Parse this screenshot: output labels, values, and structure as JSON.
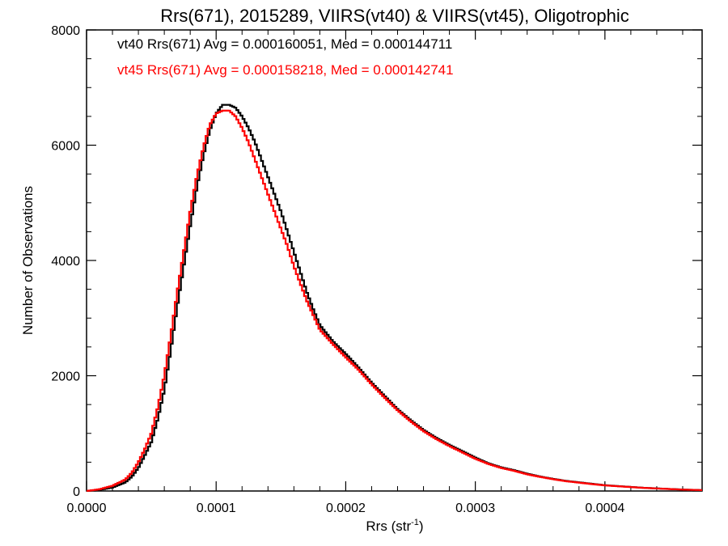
{
  "chart_data": {
    "type": "line",
    "title": "Rrs(671), 2015289, VIIRS(vt40) & VIIRS(vt45), Oligotrophic",
    "xlabel_main": "Rrs (str",
    "xlabel_exp": "-1",
    "xlabel_close": ")",
    "ylabel": "Number of Observations",
    "xlim": [
      0,
      0.000475
    ],
    "ylim": [
      0,
      8000
    ],
    "x_ticks": [
      0,
      0.0001,
      0.0002,
      0.0003,
      0.0004
    ],
    "x_tick_labels": [
      "0.0000",
      "0.0001",
      "0.0002",
      "0.0003",
      "0.0004"
    ],
    "y_ticks": [
      0,
      2000,
      4000,
      6000,
      8000
    ],
    "y_tick_labels": [
      "0",
      "2000",
      "4000",
      "6000",
      "8000"
    ],
    "annotations": [
      "vt40 Rrs(671) Avg = 0.000160051, Med = 0.000144711",
      "vt45 Rrs(671) Avg = 0.000158218, Med = 0.000142741"
    ],
    "series": [
      {
        "color": "#000000",
        "x": [
          0,
          1e-05,
          2e-05,
          3e-05,
          3.5e-05,
          4e-05,
          4.5e-05,
          5e-05,
          5.5e-05,
          6e-05,
          6.5e-05,
          7e-05,
          7.5e-05,
          8e-05,
          8.5e-05,
          9e-05,
          9.5e-05,
          0.0001,
          0.000105,
          0.00011,
          0.000115,
          0.00012,
          0.000125,
          0.00013,
          0.000135,
          0.00014,
          0.000145,
          0.00015,
          0.000155,
          0.00016,
          0.000165,
          0.00017,
          0.000175,
          0.00018,
          0.00019,
          0.0002,
          0.00021,
          0.00022,
          0.00023,
          0.00024,
          0.00025,
          0.00026,
          0.00027,
          0.00028,
          0.00029,
          0.0003,
          0.00031,
          0.00032,
          0.00033,
          0.00034,
          0.00035,
          0.00036,
          0.00037,
          0.00038,
          0.00039,
          0.0004,
          0.00041,
          0.00042,
          0.00043,
          0.00044,
          0.00045,
          0.00046,
          0.000475
        ],
        "y": [
          0,
          20,
          60,
          150,
          250,
          400,
          620,
          850,
          1250,
          1750,
          2450,
          3200,
          3900,
          4600,
          5250,
          5800,
          6250,
          6550,
          6700,
          6700,
          6650,
          6500,
          6300,
          6050,
          5750,
          5450,
          5150,
          4850,
          4500,
          4150,
          3800,
          3450,
          3150,
          2880,
          2600,
          2380,
          2140,
          1880,
          1650,
          1420,
          1230,
          1060,
          920,
          800,
          690,
          580,
          480,
          410,
          360,
          300,
          250,
          210,
          175,
          150,
          125,
          100,
          85,
          70,
          55,
          45,
          35,
          25,
          15
        ]
      },
      {
        "color": "#ff0000",
        "x": [
          0,
          1e-05,
          2e-05,
          3e-05,
          3.5e-05,
          4e-05,
          4.5e-05,
          5e-05,
          5.5e-05,
          6e-05,
          6.5e-05,
          7e-05,
          7.5e-05,
          8e-05,
          8.5e-05,
          9e-05,
          9.5e-05,
          0.0001,
          0.000105,
          0.00011,
          0.000115,
          0.00012,
          0.000125,
          0.00013,
          0.000135,
          0.00014,
          0.000145,
          0.00015,
          0.000155,
          0.00016,
          0.000165,
          0.00017,
          0.000175,
          0.00018,
          0.00019,
          0.0002,
          0.00021,
          0.00022,
          0.00023,
          0.00024,
          0.00025,
          0.00026,
          0.00027,
          0.00028,
          0.00029,
          0.0003,
          0.00031,
          0.00032,
          0.00033,
          0.00034,
          0.00035,
          0.00036,
          0.00037,
          0.00038,
          0.00039,
          0.0004,
          0.00041,
          0.00042,
          0.00043,
          0.00044,
          0.00045,
          0.00046,
          0.000475
        ],
        "y": [
          0,
          30,
          90,
          200,
          320,
          500,
          730,
          1000,
          1450,
          2000,
          2700,
          3450,
          4150,
          4850,
          5450,
          5950,
          6350,
          6550,
          6600,
          6600,
          6500,
          6300,
          6050,
          5750,
          5450,
          5150,
          4850,
          4550,
          4250,
          3900,
          3600,
          3300,
          3050,
          2800,
          2550,
          2320,
          2100,
          1850,
          1620,
          1400,
          1210,
          1040,
          900,
          780,
          670,
          560,
          470,
          400,
          350,
          290,
          245,
          205,
          170,
          145,
          120,
          98,
          82,
          68,
          54,
          44,
          34,
          24,
          15
        ]
      }
    ]
  }
}
